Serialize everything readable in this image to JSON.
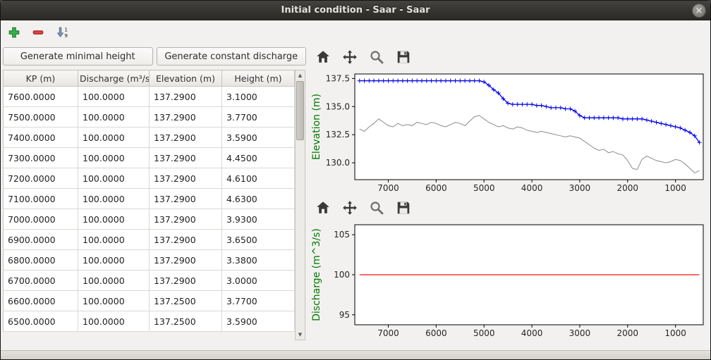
{
  "window": {
    "title": "Initial condition - Saar - Saar",
    "close_glyph": "×"
  },
  "edit_toolbar": {
    "icons": [
      "add-icon",
      "remove-icon",
      "sort-icon"
    ],
    "sort_top": "1",
    "sort_bottom": "9"
  },
  "buttons": {
    "generate_minimal_height": "Generate minimal height",
    "generate_constant_discharge": "Generate constant discharge"
  },
  "table": {
    "columns": [
      "KP (m)",
      "Discharge (m³/s)",
      "Elevation (m)",
      "Height (m)"
    ],
    "rows": [
      [
        "7600.0000",
        "100.0000",
        "137.2900",
        "3.1000"
      ],
      [
        "7500.0000",
        "100.0000",
        "137.2900",
        "3.7700"
      ],
      [
        "7400.0000",
        "100.0000",
        "137.2900",
        "3.5900"
      ],
      [
        "7300.0000",
        "100.0000",
        "137.2900",
        "4.4500"
      ],
      [
        "7200.0000",
        "100.0000",
        "137.2900",
        "4.6100"
      ],
      [
        "7100.0000",
        "100.0000",
        "137.2900",
        "4.6300"
      ],
      [
        "7000.0000",
        "100.0000",
        "137.2900",
        "3.9300"
      ],
      [
        "6900.0000",
        "100.0000",
        "137.2900",
        "3.6500"
      ],
      [
        "6800.0000",
        "100.0000",
        "137.2900",
        "3.3800"
      ],
      [
        "6700.0000",
        "100.0000",
        "137.2900",
        "3.0000"
      ],
      [
        "6600.0000",
        "100.0000",
        "137.2500",
        "3.7700"
      ],
      [
        "6500.0000",
        "100.0000",
        "137.2500",
        "3.5900"
      ]
    ]
  },
  "scrollbar": {
    "up_glyph": "▲",
    "down_glyph": "▼"
  },
  "plot_toolbar_icons": [
    "home-icon",
    "pan-icon",
    "zoom-icon",
    "save-icon"
  ],
  "chart_data": [
    {
      "type": "line",
      "ylabel": "Elevation (m)",
      "ylabel_color": "#007a00",
      "xlim": [
        7700,
        420
      ],
      "ylim": [
        128.5,
        137.9
      ],
      "x_inverted": true,
      "grid": false,
      "xticks": [
        7000,
        6000,
        5000,
        4000,
        3000,
        2000,
        1000
      ],
      "xticklabels": [
        "7000",
        "6000",
        "5000",
        "4000",
        "3000",
        "2000",
        "1000"
      ],
      "yticks": [
        130.0,
        132.5,
        135.0,
        137.5
      ],
      "yticklabels": [
        "130.0",
        "132.5",
        "135.0",
        "137.5"
      ],
      "x": [
        7600,
        7500,
        7400,
        7300,
        7200,
        7100,
        7000,
        6900,
        6800,
        6700,
        6600,
        6500,
        6400,
        6300,
        6200,
        6100,
        6000,
        5900,
        5800,
        5700,
        5600,
        5500,
        5400,
        5300,
        5200,
        5100,
        5000,
        4900,
        4800,
        4700,
        4600,
        4500,
        4400,
        4300,
        4200,
        4100,
        4000,
        3900,
        3800,
        3700,
        3600,
        3500,
        3400,
        3300,
        3200,
        3100,
        3000,
        2900,
        2800,
        2700,
        2600,
        2500,
        2400,
        2300,
        2200,
        2100,
        2000,
        1900,
        1800,
        1700,
        1600,
        1500,
        1400,
        1300,
        1200,
        1100,
        1000,
        900,
        800,
        700,
        600,
        500
      ],
      "series": [
        {
          "name": "water-level",
          "color": "#0000ee",
          "marker": "+",
          "stroke_width": 1.3,
          "values": [
            137.3,
            137.3,
            137.3,
            137.3,
            137.3,
            137.3,
            137.3,
            137.3,
            137.3,
            137.3,
            137.3,
            137.3,
            137.3,
            137.3,
            137.3,
            137.3,
            137.3,
            137.3,
            137.3,
            137.3,
            137.3,
            137.3,
            137.3,
            137.3,
            137.3,
            137.3,
            137.2,
            136.9,
            136.5,
            136.2,
            135.7,
            135.3,
            135.2,
            135.2,
            135.2,
            135.2,
            135.2,
            135.1,
            135.1,
            135.0,
            134.9,
            134.9,
            134.9,
            134.8,
            134.8,
            134.6,
            134.2,
            134.0,
            134.0,
            134.0,
            134.0,
            134.0,
            134.0,
            134.0,
            134.0,
            133.9,
            133.9,
            133.9,
            133.9,
            133.9,
            133.8,
            133.7,
            133.6,
            133.5,
            133.4,
            133.3,
            133.2,
            133.1,
            132.9,
            132.7,
            132.4,
            131.8
          ]
        },
        {
          "name": "bottom-elevation",
          "color": "#8a8a8a",
          "stroke_width": 1,
          "values": [
            133.0,
            132.8,
            133.2,
            133.5,
            133.9,
            133.6,
            133.3,
            133.2,
            133.5,
            133.3,
            133.4,
            133.3,
            133.6,
            133.5,
            133.4,
            133.6,
            133.5,
            133.3,
            133.2,
            133.4,
            133.6,
            133.5,
            133.3,
            133.7,
            134.1,
            134.2,
            133.9,
            133.6,
            133.4,
            133.2,
            133.3,
            133.1,
            133.0,
            133.2,
            133.1,
            132.9,
            132.8,
            132.7,
            132.8,
            132.7,
            132.6,
            132.5,
            132.4,
            132.3,
            132.4,
            132.3,
            132.2,
            131.9,
            131.6,
            131.3,
            131.1,
            131.2,
            130.9,
            131.0,
            130.8,
            130.7,
            130.2,
            129.5,
            129.4,
            130.3,
            130.6,
            130.4,
            130.2,
            130.1,
            130.0,
            130.1,
            130.3,
            130.2,
            129.9,
            129.5,
            129.1,
            129.3
          ]
        }
      ]
    },
    {
      "type": "line",
      "ylabel": "Discharge (m^3/s)",
      "ylabel_color": "#007a00",
      "xlim": [
        7700,
        420
      ],
      "ylim": [
        93.75,
        106.25
      ],
      "x_inverted": true,
      "grid": false,
      "xticks": [
        7000,
        6000,
        5000,
        4000,
        3000,
        2000,
        1000
      ],
      "xticklabels": [
        "7000",
        "6000",
        "5000",
        "4000",
        "3000",
        "2000",
        "1000"
      ],
      "yticks": [
        95,
        100,
        105
      ],
      "yticklabels": [
        "95",
        "100",
        "105"
      ],
      "series": [
        {
          "name": "discharge",
          "color": "#ff1111",
          "stroke_width": 1.3,
          "x": [
            7600,
            500
          ],
          "values": [
            100,
            100
          ]
        }
      ]
    }
  ]
}
